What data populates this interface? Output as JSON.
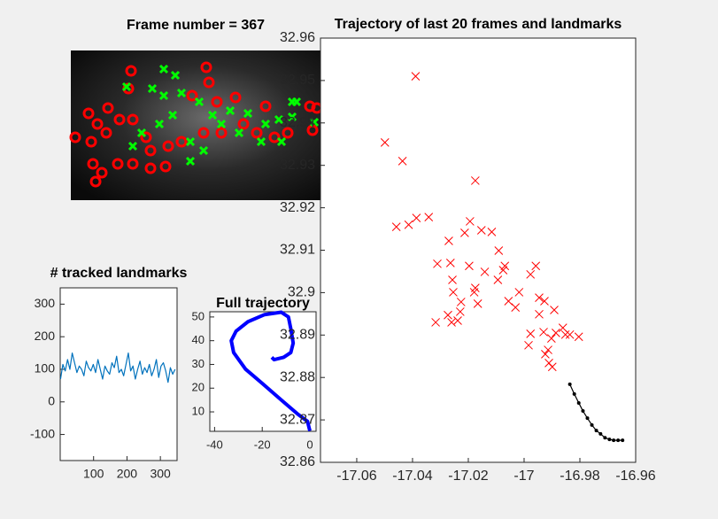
{
  "chart_data": [
    {
      "type": "scatter",
      "title": "Frame number = 367",
      "axes": false,
      "xlim": [
        0,
        282
      ],
      "ylim": [
        0,
        169
      ],
      "ydir": "reverse",
      "series": [
        {
          "color": "#ff0000",
          "marker": "o",
          "x": [
            68,
            65,
            153,
            156,
            186,
            20,
            42,
            30,
            5,
            23,
            40,
            55,
            70,
            25,
            35,
            28,
            53,
            70,
            90,
            107,
            90,
            110,
            125,
            150,
            170,
            195,
            210,
            230,
            245,
            270,
            278,
            273,
            165,
            137,
            220,
            85
          ],
          "values": [
            23,
            43,
            19,
            36,
            53,
            71,
            65,
            83,
            98,
            103,
            93,
            78,
            78,
            128,
            138,
            148,
            128,
            128,
            133,
            131,
            113,
            108,
            103,
            93,
            93,
            83,
            93,
            98,
            93,
            63,
            65,
            90,
            58,
            51,
            63,
            98
          ]
        },
        {
          "color": "#00ff00",
          "marker": "x",
          "x": [
            63,
            105,
            118,
            92,
            105,
            125,
            145,
            160,
            180,
            200,
            220,
            235,
            250,
            238,
            115,
            100,
            80,
            135,
            135,
            150,
            170,
            190,
            215,
            70,
            250,
            275,
            255
          ],
          "values": [
            41,
            21,
            28,
            43,
            51,
            48,
            58,
            73,
            68,
            71,
            83,
            78,
            75,
            103,
            73,
            83,
            93,
            103,
            125,
            113,
            83,
            93,
            103,
            108,
            58,
            81,
            58
          ]
        }
      ]
    },
    {
      "type": "line",
      "title": "# tracked landmarks",
      "xlim": [
        0,
        350
      ],
      "ylim": [
        -180,
        350
      ],
      "xticks": [
        100,
        200,
        300
      ],
      "yticks": [
        -100,
        0,
        100,
        200,
        300
      ],
      "series": [
        {
          "color": "#0072bd",
          "x": [
            1,
            8,
            15,
            22,
            29,
            36,
            43,
            50,
            57,
            64,
            71,
            78,
            85,
            92,
            99,
            106,
            113,
            120,
            127,
            134,
            141,
            148,
            155,
            162,
            169,
            176,
            183,
            190,
            197,
            204,
            211,
            218,
            225,
            232,
            239,
            246,
            253,
            260,
            267,
            274,
            281,
            288,
            295,
            302,
            309,
            316,
            323,
            330,
            337,
            344
          ],
          "values": [
            70,
            115,
            95,
            130,
            100,
            150,
            120,
            90,
            110,
            100,
            80,
            125,
            105,
            95,
            115,
            90,
            130,
            100,
            70,
            110,
            95,
            85,
            120,
            105,
            140,
            90,
            100,
            80,
            115,
            150,
            95,
            110,
            70,
            100,
            125,
            85,
            105,
            90,
            115,
            80,
            100,
            130,
            75,
            110,
            120,
            95,
            60,
            105,
            85,
            100
          ]
        }
      ]
    },
    {
      "type": "line",
      "title": "Full trajectory",
      "xlim": [
        -42,
        2.6
      ],
      "ylim": [
        1.8,
        52.2
      ],
      "xticks": [
        -40,
        -20,
        0
      ],
      "yticks": [
        10,
        20,
        30,
        40,
        50
      ],
      "series": [
        {
          "color": "#0000ff",
          "width": 4,
          "x": [
            0,
            -1,
            -5,
            -12,
            -20,
            -27,
            -32,
            -33,
            -31,
            -26,
            -19,
            -12,
            -9,
            -8,
            -7,
            -8,
            -11,
            -15,
            -16
          ],
          "values": [
            2,
            6,
            9,
            15,
            22,
            28,
            35,
            40,
            44,
            48,
            51,
            52,
            50,
            45,
            39,
            35,
            33,
            32,
            33
          ]
        }
      ]
    },
    {
      "type": "scatter",
      "title": "Trajectory of last 20 frames and landmarks",
      "xlim": [
        -17.073,
        -16.96
      ],
      "ylim": [
        32.86,
        32.96
      ],
      "xticks": [
        -17.06,
        -17.04,
        -17.02,
        -17,
        -16.98,
        -16.96
      ],
      "yticks": [
        32.86,
        32.87,
        32.88,
        32.89,
        32.9,
        32.91,
        32.92,
        32.93,
        32.94,
        32.95,
        32.96
      ],
      "series": [
        {
          "color": "#ff0000",
          "marker": "x",
          "x": [
            -17.0499,
            -17.0436,
            -17.0389,
            -17.0458,
            -17.0414,
            -17.0386,
            -17.0342,
            -17.0311,
            -17.027,
            -17.0264,
            -17.0257,
            -17.0213,
            -17.0194,
            -17.0175,
            -17.0197,
            -17.0153,
            -17.0116,
            -17.0091,
            -17.0069,
            -17.0141,
            -17.0175,
            -17.0254,
            -17.0226,
            -17.0179,
            -17.0166,
            -17.0094,
            -17.0075,
            -17.0056,
            -17.0031,
            -17.0018,
            -16.9977,
            -16.9958,
            -16.9946,
            -16.9927,
            -16.9946,
            -16.9892,
            -16.9977,
            -16.9984,
            -16.993,
            -16.9914,
            -16.9902,
            -16.9886,
            -16.9861,
            -16.9852,
            -16.9836,
            -16.9804,
            -16.9924,
            -16.9911,
            -16.9899,
            -17.0317,
            -17.0273,
            -17.026,
            -17.0238,
            -17.0229
          ],
          "values": [
            32.9354,
            32.931,
            32.951,
            32.9155,
            32.916,
            32.9176,
            32.9178,
            32.9068,
            32.9122,
            32.907,
            32.903,
            32.9141,
            32.9168,
            32.9264,
            32.9063,
            32.9147,
            32.9143,
            32.9099,
            32.9063,
            32.9049,
            32.9011,
            32.9001,
            32.8978,
            32.9001,
            32.8974,
            32.903,
            32.9053,
            32.898,
            32.8965,
            32.9001,
            32.9043,
            32.9063,
            32.8988,
            32.898,
            32.8949,
            32.8959,
            32.8903,
            32.8876,
            32.8907,
            32.8865,
            32.8892,
            32.8905,
            32.8917,
            32.8901,
            32.8901,
            32.8896,
            32.8855,
            32.8834,
            32.8825,
            32.893,
            32.8947,
            32.893,
            32.8934,
            32.8955
          ]
        },
        {
          "color": "#000000",
          "marker": ".",
          "line": true,
          "x": [
            -16.9836,
            -16.982,
            -16.9804,
            -16.9789,
            -16.9773,
            -16.9757,
            -16.9741,
            -16.9726,
            -16.971,
            -16.9694,
            -16.9679,
            -16.9663,
            -16.9647
          ],
          "values": [
            32.8784,
            32.8761,
            32.874,
            32.8721,
            32.8704,
            32.8688,
            32.8675,
            32.8667,
            32.8658,
            32.8654,
            32.8652,
            32.8652,
            32.8652
          ]
        }
      ]
    }
  ]
}
